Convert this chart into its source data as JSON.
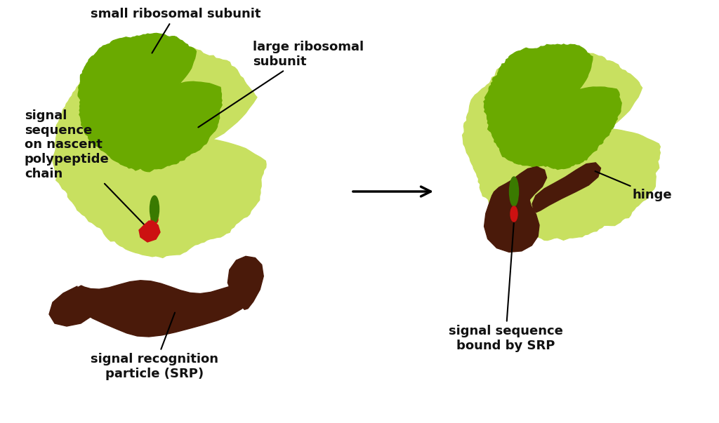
{
  "bg_color": "#ffffff",
  "dark_green": "#6aaa00",
  "light_green": "#c8e060",
  "dark_brown": "#4a1a0a",
  "medium_brown": "#5c2010",
  "red_color": "#cc1111",
  "green_small": "#3a7a00",
  "arrow_color": "#111111",
  "text_color": "#111111",
  "labels": {
    "small_ribosomal": "small ribosomal subunit",
    "large_ribosomal": "large ribosomal\nsubunit",
    "signal_sequence": "signal\nsequence\non nascent\npolypeptide\nchain",
    "srp": "signal recognition\nparticle (SRP)",
    "signal_bound": "signal sequence\nbound by SRP",
    "hinge": "hinge"
  },
  "fontsize": 13,
  "fontweight": "bold"
}
